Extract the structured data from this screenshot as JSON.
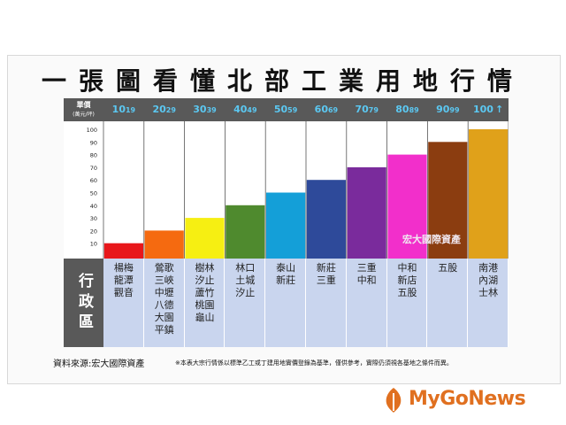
{
  "title": "一張圖看懂北部工業用地行情",
  "header": {
    "label": "單價",
    "unit": "(萬元/坪)"
  },
  "axis_head": "行政區",
  "watermark": "宏大國際資產",
  "source": "資料來源:宏大國際資產",
  "note": "※本表大宗行情係以標準乙工或丁建用地實價登錄為基準，僅供參考，實際仍須視各基地之條件而異。",
  "logo": "MyGoNews",
  "ranges": [
    {
      "from": "10",
      "to": "19"
    },
    {
      "from": "20",
      "to": "29"
    },
    {
      "from": "30",
      "to": "39"
    },
    {
      "from": "40",
      "to": "49"
    },
    {
      "from": "50",
      "to": "59"
    },
    {
      "from": "60",
      "to": "69"
    },
    {
      "from": "70",
      "to": "79"
    },
    {
      "from": "80",
      "to": "89"
    },
    {
      "from": "90",
      "to": "99"
    },
    {
      "from": "100",
      "to": "↑"
    }
  ],
  "regions": [
    "楊梅\n龍潭\n觀音",
    "鶯歌\n三峽\n中壢\n八德\n大園\n平鎮",
    "樹林\n汐止\n蘆竹\n桃園\n龜山",
    "林口\n土城\n汐止",
    "泰山\n新莊",
    "新莊\n三重",
    "三重\n中和",
    "中和\n新店\n五股",
    "五股",
    "南港\n內湖\n士林"
  ],
  "colors": [
    "#e8171b",
    "#f56a10",
    "#f6ef12",
    "#4f8a2e",
    "#149fd8",
    "#2e4a9a",
    "#7a2b9c",
    "#f22fcb",
    "#8b3d10",
    "#e0a11a"
  ],
  "chart_data": {
    "type": "bar",
    "categories": [
      "10~19",
      "20~29",
      "30~39",
      "40~49",
      "50~59",
      "60~69",
      "70~79",
      "80~89",
      "90~99",
      "100↑"
    ],
    "values": [
      10,
      20,
      30,
      40,
      50,
      60,
      70,
      80,
      90,
      100
    ],
    "ylim": [
      0,
      100
    ],
    "yticks": [
      10,
      20,
      30,
      40,
      50,
      60,
      70,
      80,
      90,
      100
    ],
    "ylabel": "單價(萬元/坪)"
  }
}
